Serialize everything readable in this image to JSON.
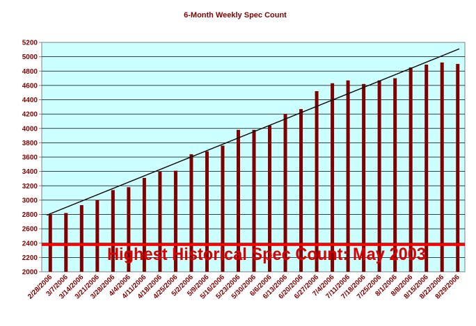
{
  "chart_data": {
    "type": "bar",
    "title": "6-Month Weekly Spec Count",
    "xlabel": "",
    "ylabel": "",
    "ylim": [
      2000,
      5200
    ],
    "yticks": [
      2000,
      2200,
      2400,
      2600,
      2800,
      3000,
      3200,
      3400,
      3600,
      3800,
      4000,
      4200,
      4400,
      4600,
      4800,
      5000,
      5200
    ],
    "grid": true,
    "legend": "none",
    "plot_background": "#ccffff",
    "bar_color": "#800000",
    "categories": [
      "2/28/2006",
      "3/7/2006",
      "3/14/2006",
      "3/21/2006",
      "3/28/2006",
      "4/4/2006",
      "4/11/2006",
      "4/18/2006",
      "4/25/2006",
      "5/2/2006",
      "5/9/2006",
      "5/16/2006",
      "5/23/2006",
      "5/30/2006",
      "6/6/2006",
      "6/13/2006",
      "6/20/2006",
      "6/27/2006",
      "7/4/2006",
      "7/11/2006",
      "7/18/2006",
      "7/25/2006",
      "8/1/2006",
      "8/8/2006",
      "8/15/2006",
      "8/22/2006",
      "8/29/2006"
    ],
    "values": [
      2800,
      2820,
      2930,
      3000,
      3140,
      3180,
      3310,
      3400,
      3410,
      3640,
      3680,
      3760,
      3980,
      3980,
      4040,
      4200,
      4270,
      4520,
      4630,
      4670,
      4620,
      4670,
      4700,
      4850,
      4890,
      4920,
      4900
    ],
    "trendline": {
      "start": 2790,
      "end": 5110,
      "color": "#000000"
    },
    "reference_line": {
      "value": 2380,
      "color": "#ff0000",
      "label": "Highest Historical Spec Count: May 2003"
    }
  }
}
